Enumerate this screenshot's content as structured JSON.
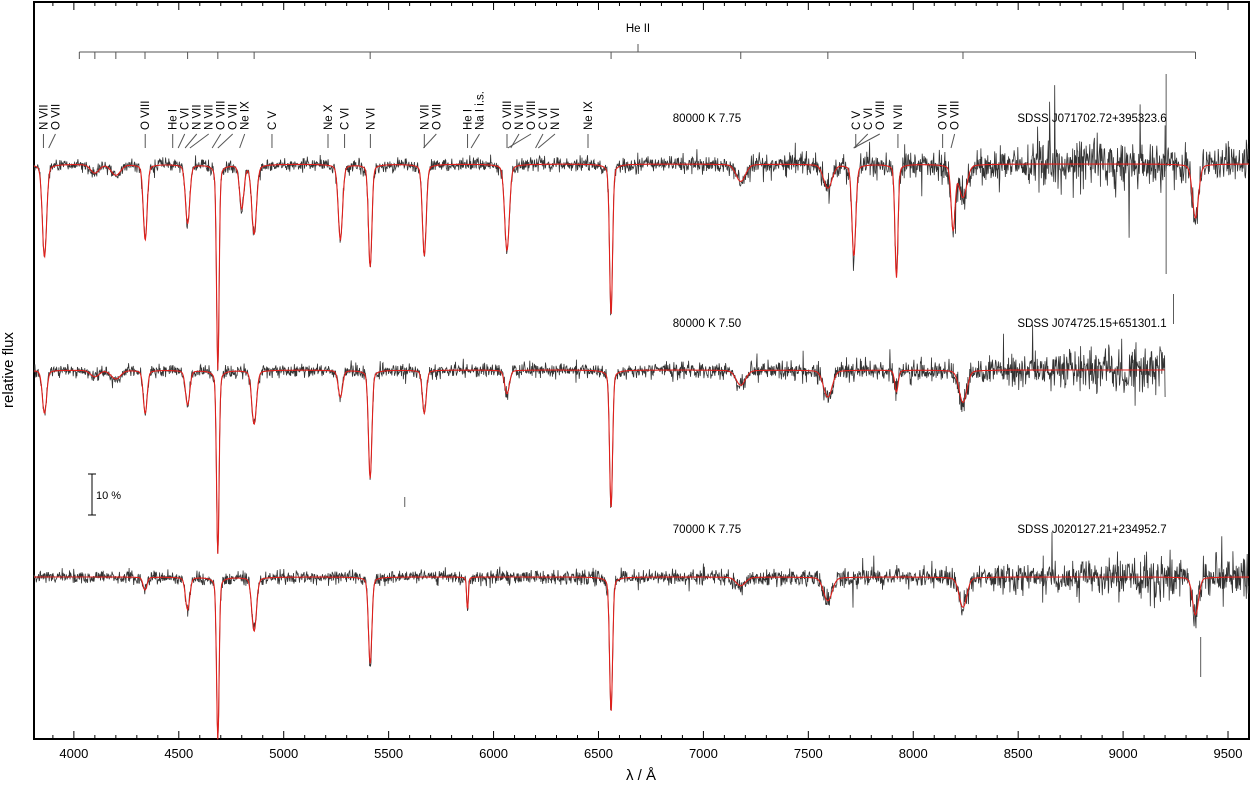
{
  "chart_data": {
    "type": "line",
    "xlabel": "λ / Å",
    "ylabel": "relative flux",
    "xlim": [
      3810,
      9600
    ],
    "xticks": [
      4000,
      4500,
      5000,
      5500,
      6000,
      6500,
      7000,
      7500,
      8000,
      8500,
      9000,
      9500
    ],
    "minor_tick_step": 100,
    "grid": false,
    "scale_bar": {
      "label": "10 %",
      "percent": 10
    },
    "colors": {
      "observed": "#333333",
      "model": "#e0201c",
      "axes": "#000000"
    },
    "he2_series": {
      "label": "He II",
      "lines": [
        4026,
        4100,
        4200,
        4339,
        4542,
        4686,
        4859,
        5412,
        6560,
        7178,
        7593,
        8237,
        9345
      ]
    },
    "ion_labels": [
      {
        "label": "N VII",
        "wavelength": 3855
      },
      {
        "label": "O VII",
        "wavelength": 3880
      },
      {
        "label": "O VIII",
        "wavelength": 4340
      },
      {
        "label": "He I",
        "wavelength": 4471
      },
      {
        "label": "C VI",
        "wavelength": 4497
      },
      {
        "label": "N VII",
        "wavelength": 4530
      },
      {
        "label": "N VII",
        "wavelength": 4553
      },
      {
        "label": "O VIII",
        "wavelength": 4659
      },
      {
        "label": "O VII",
        "wavelength": 4686
      },
      {
        "label": "Ne IX",
        "wavelength": 4790
      },
      {
        "label": "C V",
        "wavelength": 4944
      },
      {
        "label": "Ne X",
        "wavelength": 5211
      },
      {
        "label": "C VI",
        "wavelength": 5290
      },
      {
        "label": "N VI",
        "wavelength": 5413
      },
      {
        "label": "N VII",
        "wavelength": 5670
      },
      {
        "label": "O VII",
        "wavelength": 5666
      },
      {
        "label": "He I",
        "wavelength": 5876
      },
      {
        "label": "Na I i.s.",
        "wavelength": 5893
      },
      {
        "label": "O VIII",
        "wavelength": 6064
      },
      {
        "label": "N VII",
        "wavelength": 6082
      },
      {
        "label": "O VIII",
        "wavelength": 6068
      },
      {
        "label": "C VI",
        "wavelength": 6200
      },
      {
        "label": "N VI",
        "wavelength": 6213
      },
      {
        "label": "Ne IX",
        "wavelength": 6450
      },
      {
        "label": "C V",
        "wavelength": 7726
      },
      {
        "label": "C VI",
        "wavelength": 7717
      },
      {
        "label": "O VIII",
        "wavelength": 7716
      },
      {
        "label": "N VII",
        "wavelength": 7927
      },
      {
        "label": "O VII",
        "wavelength": 8140
      },
      {
        "label": "O VIII",
        "wavelength": 8180
      }
    ],
    "series": [
      {
        "name": "SDSS J071702.72+395323.6",
        "parameters": "80000 K  7.75",
        "x_range": [
          3810,
          9600
        ],
        "noise_profile": [
          [
            3810,
            3.0
          ],
          [
            7000,
            4.0
          ],
          [
            8300,
            7.5
          ],
          [
            8800,
            14
          ],
          [
            9200,
            11
          ],
          [
            9600,
            8
          ]
        ],
        "spikes": [
          [
            9205,
            90,
            110
          ],
          [
            9240,
            -130,
            160
          ],
          [
            9210,
            -400,
            400
          ]
        ],
        "lines": [
          {
            "wavelength": 3860,
            "depth": 86,
            "width": 10
          },
          {
            "wavelength": 4100,
            "depth": 8,
            "width": 20
          },
          {
            "wavelength": 4200,
            "depth": 10,
            "width": 22
          },
          {
            "wavelength": 4340,
            "depth": 70,
            "width": 9
          },
          {
            "wavelength": 4542,
            "depth": 55,
            "width": 10
          },
          {
            "wavelength": 4686,
            "depth": 190,
            "width": 6
          },
          {
            "wavelength": 4800,
            "depth": 40,
            "width": 10
          },
          {
            "wavelength": 4859,
            "depth": 64,
            "width": 11
          },
          {
            "wavelength": 5270,
            "depth": 70,
            "width": 10
          },
          {
            "wavelength": 5412,
            "depth": 95,
            "width": 8
          },
          {
            "wavelength": 5670,
            "depth": 85,
            "width": 9
          },
          {
            "wavelength": 6064,
            "depth": 80,
            "width": 11
          },
          {
            "wavelength": 6560,
            "depth": 140,
            "width": 7
          },
          {
            "wavelength": 7178,
            "depth": 16,
            "width": 22
          },
          {
            "wavelength": 7593,
            "depth": 22,
            "width": 20
          },
          {
            "wavelength": 7717,
            "depth": 85,
            "width": 9
          },
          {
            "wavelength": 7920,
            "depth": 105,
            "width": 7
          },
          {
            "wavelength": 8190,
            "depth": 60,
            "width": 9
          },
          {
            "wavelength": 8237,
            "depth": 30,
            "width": 18
          },
          {
            "wavelength": 9345,
            "depth": 50,
            "width": 14
          }
        ]
      },
      {
        "name": "SDSS J074725.15+651301.1",
        "parameters": "80000 K  7.50",
        "x_range": [
          3810,
          9200
        ],
        "noise_profile": [
          [
            3810,
            3.0
          ],
          [
            7000,
            4.0
          ],
          [
            8300,
            6.0
          ],
          [
            8800,
            11
          ],
          [
            9200,
            12
          ]
        ],
        "spikes": [],
        "lines": [
          {
            "wavelength": 3860,
            "depth": 40,
            "width": 10
          },
          {
            "wavelength": 4100,
            "depth": 6,
            "width": 20
          },
          {
            "wavelength": 4200,
            "depth": 8,
            "width": 22
          },
          {
            "wavelength": 4340,
            "depth": 40,
            "width": 9
          },
          {
            "wavelength": 4542,
            "depth": 32,
            "width": 10
          },
          {
            "wavelength": 4686,
            "depth": 170,
            "width": 6
          },
          {
            "wavelength": 4859,
            "depth": 50,
            "width": 11
          },
          {
            "wavelength": 5270,
            "depth": 25,
            "width": 10
          },
          {
            "wavelength": 5412,
            "depth": 100,
            "width": 8
          },
          {
            "wavelength": 5670,
            "depth": 40,
            "width": 9
          },
          {
            "wavelength": 6064,
            "depth": 22,
            "width": 11
          },
          {
            "wavelength": 6560,
            "depth": 128,
            "width": 7
          },
          {
            "wavelength": 7178,
            "depth": 14,
            "width": 22
          },
          {
            "wavelength": 7593,
            "depth": 25,
            "width": 20
          },
          {
            "wavelength": 7920,
            "depth": 20,
            "width": 8
          },
          {
            "wavelength": 8237,
            "depth": 30,
            "width": 18
          }
        ]
      },
      {
        "name": "SDSS J020127.21+234952.7",
        "parameters": "70000 K  7.75",
        "x_range": [
          3810,
          9600
        ],
        "noise_profile": [
          [
            3810,
            3.0
          ],
          [
            7000,
            4.0
          ],
          [
            8300,
            5.5
          ],
          [
            8800,
            9
          ],
          [
            9300,
            10
          ],
          [
            9600,
            11
          ]
        ],
        "spikes": [
          [
            5577,
            70,
            -80
          ],
          [
            9370,
            -100,
            60
          ]
        ],
        "lines": [
          {
            "wavelength": 4339,
            "depth": 12,
            "width": 9
          },
          {
            "wavelength": 4542,
            "depth": 30,
            "width": 10
          },
          {
            "wavelength": 4686,
            "depth": 150,
            "width": 6
          },
          {
            "wavelength": 4859,
            "depth": 50,
            "width": 11
          },
          {
            "wavelength": 5412,
            "depth": 80,
            "width": 8
          },
          {
            "wavelength": 5876,
            "depth": 30,
            "width": 4
          },
          {
            "wavelength": 6560,
            "depth": 125,
            "width": 7
          },
          {
            "wavelength": 7178,
            "depth": 8,
            "width": 22
          },
          {
            "wavelength": 7593,
            "depth": 22,
            "width": 20
          },
          {
            "wavelength": 8237,
            "depth": 28,
            "width": 18
          },
          {
            "wavelength": 9345,
            "depth": 35,
            "width": 14
          }
        ]
      }
    ]
  }
}
